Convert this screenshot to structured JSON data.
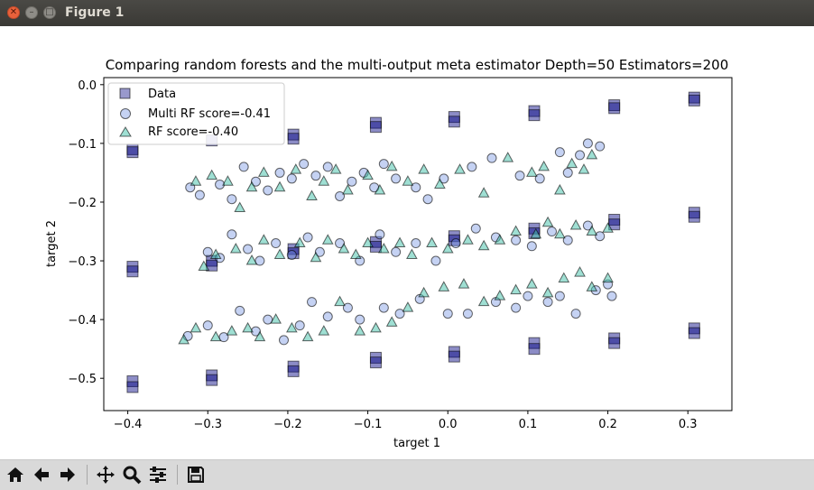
{
  "window": {
    "title": "Figure 1"
  },
  "toolbar": {
    "buttons": [
      {
        "name": "home-icon"
      },
      {
        "name": "back-arrow-icon"
      },
      {
        "name": "forward-arrow-icon"
      },
      {
        "name": "pan-icon"
      },
      {
        "name": "zoom-icon"
      },
      {
        "name": "configure-subplots-icon"
      },
      {
        "name": "save-icon"
      }
    ]
  },
  "chart_data": {
    "type": "scatter",
    "title": "Comparing random forests and the multi-output meta estimator Depth=50 Estimators=200",
    "xlabel": "target 1",
    "ylabel": "target 2",
    "xlim": [
      -0.43,
      0.355
    ],
    "ylim": [
      -0.555,
      0.012
    ],
    "xticks": [
      -0.4,
      -0.3,
      -0.2,
      -0.1,
      0.0,
      0.1,
      0.2,
      0.3
    ],
    "xtick_labels": [
      "−0.4",
      "−0.3",
      "−0.2",
      "−0.1",
      "0.0",
      "0.1",
      "0.2",
      "0.3"
    ],
    "yticks": [
      0.0,
      -0.1,
      -0.2,
      -0.3,
      -0.4,
      -0.5
    ],
    "ytick_labels": [
      "0.0",
      "−0.1",
      "−0.2",
      "−0.3",
      "−0.4",
      "−0.5"
    ],
    "grid": false,
    "legend_position": "upper-left",
    "series": [
      {
        "name": "Data",
        "marker": "square",
        "color": "#000080",
        "points": [
          [
            -0.394,
            -0.11
          ],
          [
            -0.394,
            -0.115
          ],
          [
            -0.394,
            -0.31
          ],
          [
            -0.394,
            -0.318
          ],
          [
            -0.394,
            -0.505
          ],
          [
            -0.394,
            -0.515
          ],
          [
            -0.295,
            -0.095
          ],
          [
            -0.295,
            -0.3
          ],
          [
            -0.295,
            -0.308
          ],
          [
            -0.295,
            -0.495
          ],
          [
            -0.295,
            -0.503
          ],
          [
            -0.193,
            -0.085
          ],
          [
            -0.193,
            -0.092
          ],
          [
            -0.193,
            -0.28
          ],
          [
            -0.193,
            -0.287
          ],
          [
            -0.193,
            -0.48
          ],
          [
            -0.193,
            -0.488
          ],
          [
            -0.09,
            -0.065
          ],
          [
            -0.09,
            -0.072
          ],
          [
            -0.09,
            -0.268
          ],
          [
            -0.09,
            -0.276
          ],
          [
            -0.09,
            -0.465
          ],
          [
            -0.09,
            -0.473
          ],
          [
            0.008,
            -0.055
          ],
          [
            0.008,
            -0.063
          ],
          [
            0.008,
            -0.258
          ],
          [
            0.008,
            -0.265
          ],
          [
            0.008,
            -0.455
          ],
          [
            0.008,
            -0.463
          ],
          [
            0.108,
            -0.045
          ],
          [
            0.108,
            -0.052
          ],
          [
            0.108,
            -0.245
          ],
          [
            0.108,
            -0.253
          ],
          [
            0.108,
            -0.44
          ],
          [
            0.108,
            -0.45
          ],
          [
            0.208,
            -0.035
          ],
          [
            0.208,
            -0.04
          ],
          [
            0.208,
            -0.23
          ],
          [
            0.208,
            -0.238
          ],
          [
            0.208,
            -0.432
          ],
          [
            0.208,
            -0.44
          ],
          [
            0.308,
            -0.022
          ],
          [
            0.308,
            -0.027
          ],
          [
            0.308,
            -0.218
          ],
          [
            0.308,
            -0.225
          ],
          [
            0.308,
            -0.415
          ],
          [
            0.308,
            -0.423
          ]
        ]
      },
      {
        "name": "Multi RF score=-0.41",
        "marker": "circle",
        "color": "#6f8fe0",
        "points": [
          [
            -0.322,
            -0.175
          ],
          [
            -0.31,
            -0.188
          ],
          [
            -0.285,
            -0.17
          ],
          [
            -0.27,
            -0.195
          ],
          [
            -0.255,
            -0.14
          ],
          [
            -0.24,
            -0.165
          ],
          [
            -0.225,
            -0.18
          ],
          [
            -0.21,
            -0.15
          ],
          [
            -0.195,
            -0.16
          ],
          [
            -0.18,
            -0.135
          ],
          [
            -0.165,
            -0.155
          ],
          [
            -0.15,
            -0.14
          ],
          [
            -0.135,
            -0.19
          ],
          [
            -0.12,
            -0.165
          ],
          [
            -0.105,
            -0.15
          ],
          [
            -0.092,
            -0.175
          ],
          [
            -0.08,
            -0.135
          ],
          [
            -0.065,
            -0.16
          ],
          [
            -0.04,
            -0.175
          ],
          [
            -0.025,
            -0.195
          ],
          [
            -0.005,
            -0.16
          ],
          [
            0.03,
            -0.14
          ],
          [
            0.055,
            -0.125
          ],
          [
            0.09,
            -0.155
          ],
          [
            0.115,
            -0.16
          ],
          [
            0.14,
            -0.115
          ],
          [
            0.15,
            -0.15
          ],
          [
            0.165,
            -0.12
          ],
          [
            0.175,
            -0.1
          ],
          [
            0.19,
            -0.105
          ],
          [
            -0.3,
            -0.285
          ],
          [
            -0.285,
            -0.295
          ],
          [
            -0.27,
            -0.255
          ],
          [
            -0.25,
            -0.28
          ],
          [
            -0.235,
            -0.3
          ],
          [
            -0.215,
            -0.27
          ],
          [
            -0.195,
            -0.29
          ],
          [
            -0.175,
            -0.26
          ],
          [
            -0.16,
            -0.285
          ],
          [
            -0.135,
            -0.27
          ],
          [
            -0.11,
            -0.3
          ],
          [
            -0.085,
            -0.255
          ],
          [
            -0.065,
            -0.285
          ],
          [
            -0.04,
            -0.27
          ],
          [
            -0.015,
            -0.3
          ],
          [
            0.01,
            -0.27
          ],
          [
            0.035,
            -0.245
          ],
          [
            0.06,
            -0.26
          ],
          [
            0.085,
            -0.265
          ],
          [
            0.105,
            -0.275
          ],
          [
            0.13,
            -0.25
          ],
          [
            0.15,
            -0.265
          ],
          [
            0.175,
            -0.24
          ],
          [
            0.19,
            -0.258
          ],
          [
            -0.325,
            -0.428
          ],
          [
            -0.3,
            -0.41
          ],
          [
            -0.28,
            -0.43
          ],
          [
            -0.26,
            -0.385
          ],
          [
            -0.24,
            -0.42
          ],
          [
            -0.225,
            -0.4
          ],
          [
            -0.205,
            -0.435
          ],
          [
            -0.185,
            -0.41
          ],
          [
            -0.17,
            -0.37
          ],
          [
            -0.15,
            -0.395
          ],
          [
            -0.125,
            -0.38
          ],
          [
            -0.11,
            -0.4
          ],
          [
            -0.08,
            -0.38
          ],
          [
            -0.06,
            -0.39
          ],
          [
            -0.035,
            -0.365
          ],
          [
            0.0,
            -0.39
          ],
          [
            0.025,
            -0.39
          ],
          [
            0.06,
            -0.37
          ],
          [
            0.085,
            -0.38
          ],
          [
            0.1,
            -0.36
          ],
          [
            0.125,
            -0.37
          ],
          [
            0.14,
            -0.36
          ],
          [
            0.16,
            -0.39
          ],
          [
            0.185,
            -0.35
          ],
          [
            0.205,
            -0.36
          ],
          [
            0.2,
            -0.34
          ]
        ]
      },
      {
        "name": "RF score=-0.40",
        "marker": "triangle",
        "color": "#40c0a8",
        "points": [
          [
            -0.315,
            -0.165
          ],
          [
            -0.295,
            -0.155
          ],
          [
            -0.275,
            -0.165
          ],
          [
            -0.26,
            -0.21
          ],
          [
            -0.245,
            -0.175
          ],
          [
            -0.23,
            -0.15
          ],
          [
            -0.21,
            -0.175
          ],
          [
            -0.19,
            -0.145
          ],
          [
            -0.17,
            -0.19
          ],
          [
            -0.155,
            -0.165
          ],
          [
            -0.14,
            -0.145
          ],
          [
            -0.125,
            -0.18
          ],
          [
            -0.1,
            -0.155
          ],
          [
            -0.085,
            -0.18
          ],
          [
            -0.07,
            -0.14
          ],
          [
            -0.05,
            -0.165
          ],
          [
            -0.03,
            -0.145
          ],
          [
            -0.01,
            -0.17
          ],
          [
            0.015,
            -0.145
          ],
          [
            0.045,
            -0.185
          ],
          [
            0.075,
            -0.125
          ],
          [
            0.105,
            -0.15
          ],
          [
            0.12,
            -0.14
          ],
          [
            0.14,
            -0.18
          ],
          [
            0.155,
            -0.135
          ],
          [
            0.17,
            -0.145
          ],
          [
            0.18,
            -0.12
          ],
          [
            -0.305,
            -0.31
          ],
          [
            -0.29,
            -0.29
          ],
          [
            -0.265,
            -0.28
          ],
          [
            -0.245,
            -0.3
          ],
          [
            -0.23,
            -0.265
          ],
          [
            -0.21,
            -0.29
          ],
          [
            -0.185,
            -0.27
          ],
          [
            -0.165,
            -0.295
          ],
          [
            -0.15,
            -0.265
          ],
          [
            -0.13,
            -0.28
          ],
          [
            -0.115,
            -0.29
          ],
          [
            -0.1,
            -0.27
          ],
          [
            -0.08,
            -0.28
          ],
          [
            -0.06,
            -0.27
          ],
          [
            -0.045,
            -0.29
          ],
          [
            -0.02,
            -0.27
          ],
          [
            0.0,
            -0.28
          ],
          [
            0.025,
            -0.265
          ],
          [
            0.045,
            -0.275
          ],
          [
            0.065,
            -0.265
          ],
          [
            0.085,
            -0.25
          ],
          [
            0.11,
            -0.255
          ],
          [
            0.125,
            -0.235
          ],
          [
            0.14,
            -0.255
          ],
          [
            0.16,
            -0.24
          ],
          [
            0.18,
            -0.25
          ],
          [
            0.2,
            -0.245
          ],
          [
            -0.33,
            -0.435
          ],
          [
            -0.315,
            -0.415
          ],
          [
            -0.29,
            -0.43
          ],
          [
            -0.27,
            -0.42
          ],
          [
            -0.25,
            -0.415
          ],
          [
            -0.235,
            -0.43
          ],
          [
            -0.215,
            -0.4
          ],
          [
            -0.195,
            -0.415
          ],
          [
            -0.175,
            -0.43
          ],
          [
            -0.155,
            -0.42
          ],
          [
            -0.135,
            -0.37
          ],
          [
            -0.11,
            -0.42
          ],
          [
            -0.09,
            -0.415
          ],
          [
            -0.07,
            -0.405
          ],
          [
            -0.05,
            -0.38
          ],
          [
            -0.03,
            -0.355
          ],
          [
            -0.005,
            -0.345
          ],
          [
            0.02,
            -0.34
          ],
          [
            0.045,
            -0.37
          ],
          [
            0.065,
            -0.36
          ],
          [
            0.085,
            -0.35
          ],
          [
            0.105,
            -0.34
          ],
          [
            0.125,
            -0.355
          ],
          [
            0.145,
            -0.33
          ],
          [
            0.165,
            -0.32
          ],
          [
            0.18,
            -0.345
          ],
          [
            0.2,
            -0.33
          ]
        ]
      }
    ]
  }
}
